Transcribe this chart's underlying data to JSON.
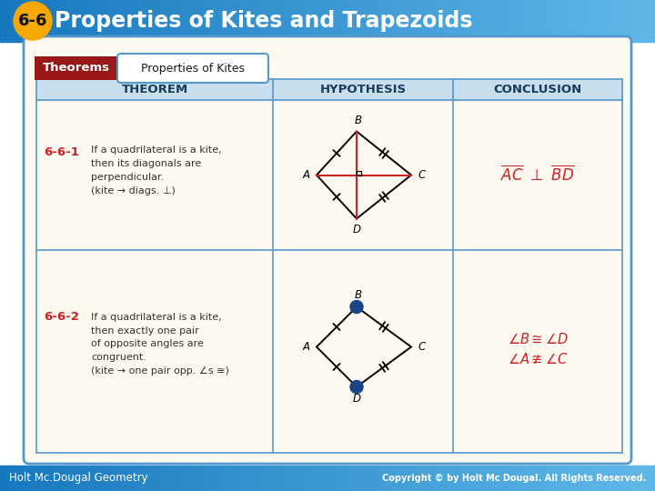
{
  "title": "Properties of Kites and Trapezoids",
  "lesson_num": "6-6",
  "header_bg": "#1878be",
  "header_gradient_end": "#60b8e8",
  "gold_circle_color": "#f5a800",
  "gold_circle_shadow": "#c07800",
  "title_text_color": "#ffffff",
  "footer_bg": "#1878be",
  "footer_left": "Holt Mc.Dougal Geometry",
  "footer_right": "Copyright © by Holt Mc Dougal. All Rights Reserved.",
  "card_bg": "#fef9f0",
  "card_border": "#5599cc",
  "card_border2": "#aaccee",
  "theorems_label_bg": "#991818",
  "theorems_label_text": "Theorems",
  "prop_kites_label": "Properties of Kites",
  "col_header_bg": "#c8dff0",
  "col1_header": "THEOREM",
  "col2_header": "HYPOTHESIS",
  "col3_header": "CONCLUSION",
  "theorem1_num": "6-6-1",
  "theorem2_num": "6-6-2",
  "theorem1_text": "If a quadrilateral is a kite,\nthen its diagonals are\nperpendicular.\n(kite → diags. ⊥)",
  "theorem2_text": "If a quadrilateral is a kite,\nthen exactly one pair\nof opposite angles are\ncongruent.\n(kite → one pair opp. ∠s ≅)",
  "red_color": "#cc2222",
  "dark_text": "#333333",
  "blue_dot_color": "#1a4488",
  "divider_color": "#5599cc",
  "bg_white": "#ffffff"
}
